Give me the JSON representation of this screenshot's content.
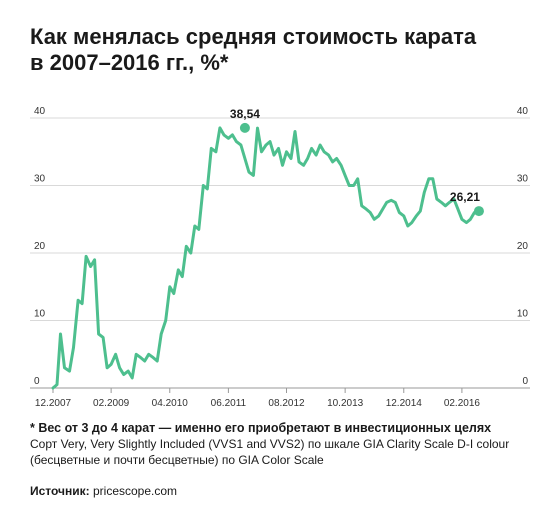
{
  "title": {
    "line1": "Как менялась средняя стоимость карата",
    "line2": "в 2007–2016 гг., %*"
  },
  "footnote": {
    "head": "* Вес от 3 до 4 карат — именно его приобретают в инвестиционных целях",
    "line2": "Сорт Very, Very Slightly Included (VVS1 and VVS2) по шкале GIA Clarity Scale D-I colour",
    "line3": "(бесцветные и почти бесцветные)  по GIA Color Scale"
  },
  "source": {
    "label": "Источник:",
    "value": "pricescope.com"
  },
  "colors": {
    "line": "#4dbf8e",
    "grid": "#d9d9d9",
    "axis": "#999999"
  },
  "chart_data": {
    "type": "line",
    "title": "Как менялась средняя стоимость карата в 2007–2016 гг., %*",
    "xlabel": "",
    "ylabel": "",
    "ylim": [
      0,
      40
    ],
    "xlim": [
      2007.9,
      2017.0
    ],
    "grid": true,
    "legend": "none",
    "y_ticks": [
      "0",
      "10",
      "20",
      "30",
      "40"
    ],
    "x_ticks": [
      {
        "label": "12.2007",
        "x": 2007.92
      },
      {
        "label": "02.2009",
        "x": 2009.08
      },
      {
        "label": "04.2010",
        "x": 2010.25
      },
      {
        "label": "06.2011",
        "x": 2011.42
      },
      {
        "label": "08.2012",
        "x": 2012.58
      },
      {
        "label": "10.2013",
        "x": 2013.75
      },
      {
        "label": "12.2014",
        "x": 2014.92
      },
      {
        "label": "02.2016",
        "x": 2016.08
      }
    ],
    "annotations": [
      {
        "label": "38,54",
        "x": 2011.75,
        "y": 38.54
      },
      {
        "label": "26,21",
        "x": 2016.42,
        "y": 26.21
      }
    ],
    "series": [
      {
        "x": [
          2007.92,
          2008.0,
          2008.07,
          2008.15,
          2008.25,
          2008.33,
          2008.42,
          2008.5,
          2008.58,
          2008.67,
          2008.75,
          2008.83,
          2008.92,
          2009.0,
          2009.08,
          2009.17,
          2009.25,
          2009.33,
          2009.42,
          2009.5,
          2009.58,
          2009.67,
          2009.75,
          2009.83,
          2009.92,
          2010.0,
          2010.08,
          2010.17,
          2010.25,
          2010.33,
          2010.42,
          2010.5,
          2010.58,
          2010.67,
          2010.75,
          2010.83,
          2010.92,
          2011.0,
          2011.08,
          2011.17,
          2011.25,
          2011.33,
          2011.42,
          2011.5,
          2011.58,
          2011.67,
          2011.75,
          2011.83,
          2011.92,
          2012.0,
          2012.08,
          2012.17,
          2012.25,
          2012.33,
          2012.42,
          2012.5,
          2012.58,
          2012.67,
          2012.75,
          2012.83,
          2012.92,
          2013.0,
          2013.08,
          2013.17,
          2013.25,
          2013.33,
          2013.42,
          2013.5,
          2013.58,
          2013.67,
          2013.75,
          2013.83,
          2013.92,
          2014.0,
          2014.08,
          2014.17,
          2014.25,
          2014.33,
          2014.42,
          2014.5,
          2014.58,
          2014.67,
          2014.75,
          2014.83,
          2014.92,
          2015.0,
          2015.08,
          2015.17,
          2015.25,
          2015.33,
          2015.42,
          2015.5,
          2015.58,
          2015.67,
          2015.75,
          2015.83,
          2015.92,
          2016.0,
          2016.08,
          2016.17,
          2016.25,
          2016.33,
          2016.42
        ],
        "y": [
          0.0,
          0.5,
          8.0,
          3.0,
          2.5,
          6.0,
          13.0,
          12.5,
          19.5,
          18.0,
          19.0,
          8.0,
          7.5,
          3.0,
          3.5,
          5.0,
          3.0,
          2.0,
          2.5,
          1.5,
          5.0,
          4.5,
          4.0,
          5.0,
          4.5,
          4.0,
          8.0,
          10.0,
          15.0,
          14.0,
          17.5,
          16.5,
          21.0,
          20.0,
          24.0,
          23.5,
          30.0,
          29.5,
          35.5,
          35.0,
          38.54,
          37.5,
          37.0,
          37.5,
          36.5,
          36.0,
          34.0,
          32.0,
          31.5,
          38.5,
          35.0,
          36.0,
          36.5,
          34.5,
          35.5,
          33.0,
          35.0,
          34.0,
          38.0,
          33.5,
          33.0,
          34.0,
          35.5,
          34.5,
          36.0,
          35.0,
          34.5,
          33.5,
          34.0,
          33.0,
          31.5,
          30.0,
          30.0,
          31.0,
          27.0,
          26.5,
          26.0,
          25.0,
          25.5,
          26.5,
          27.5,
          27.8,
          27.5,
          26.0,
          25.5,
          24.0,
          24.5,
          25.5,
          26.21,
          29.0,
          31.0,
          31.0,
          28.0,
          27.5,
          27.0,
          27.5,
          28.0,
          26.5,
          25.0,
          24.5,
          25.0,
          26.0,
          26.21
        ]
      }
    ]
  }
}
